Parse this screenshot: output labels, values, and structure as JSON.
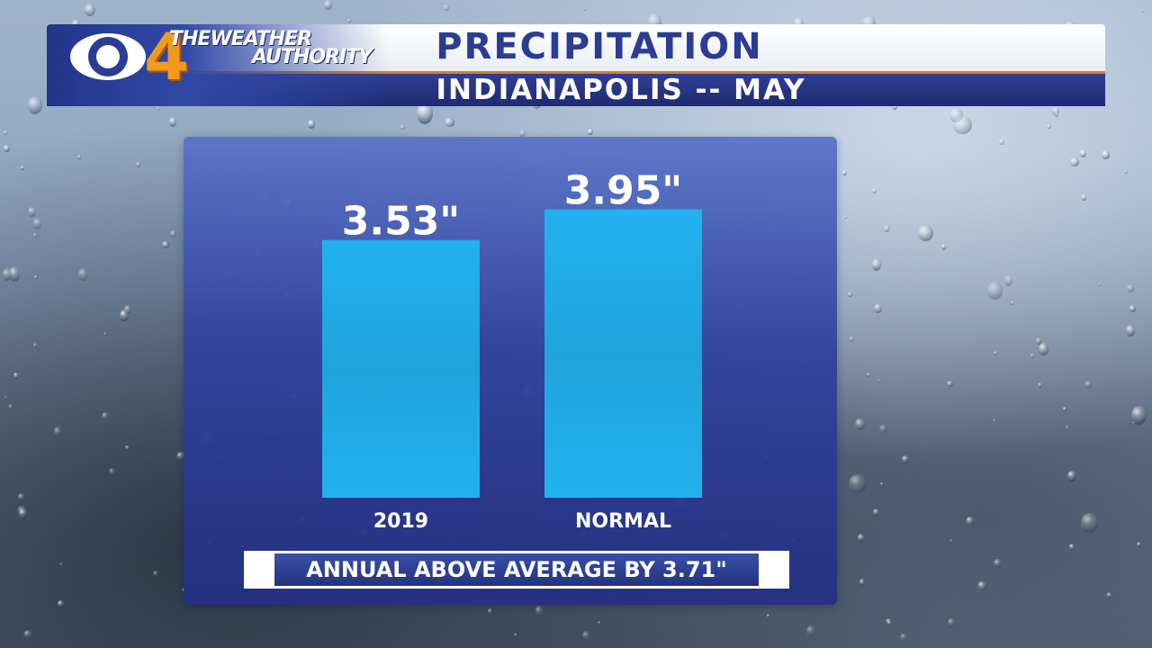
{
  "header": {
    "station_number": "4",
    "brand_line1": "THEWEATHER",
    "brand_line2": "AUTHORITY",
    "title": "PRECIPITATION",
    "subtitle": "INDIANAPOLIS -- MAY"
  },
  "colors": {
    "bar": "#22b2ef",
    "panel": "#3042a0",
    "header_blue": "#2b3c94",
    "accent_orange": "#f39a1e"
  },
  "icons": {
    "logo": "cbs-eye-icon"
  },
  "chart_data": {
    "type": "bar",
    "title": "PRECIPITATION",
    "subtitle": "INDIANAPOLIS -- MAY",
    "categories": [
      "2019",
      "NORMAL"
    ],
    "values": [
      3.53,
      3.95
    ],
    "value_labels": [
      "3.53\"",
      "3.95\""
    ],
    "xlabel": "",
    "ylabel": "",
    "ylim": [
      0,
      4.5
    ],
    "grid": false,
    "legend": "none"
  },
  "footer": {
    "note": "ANNUAL ABOVE AVERAGE BY 3.71\""
  }
}
